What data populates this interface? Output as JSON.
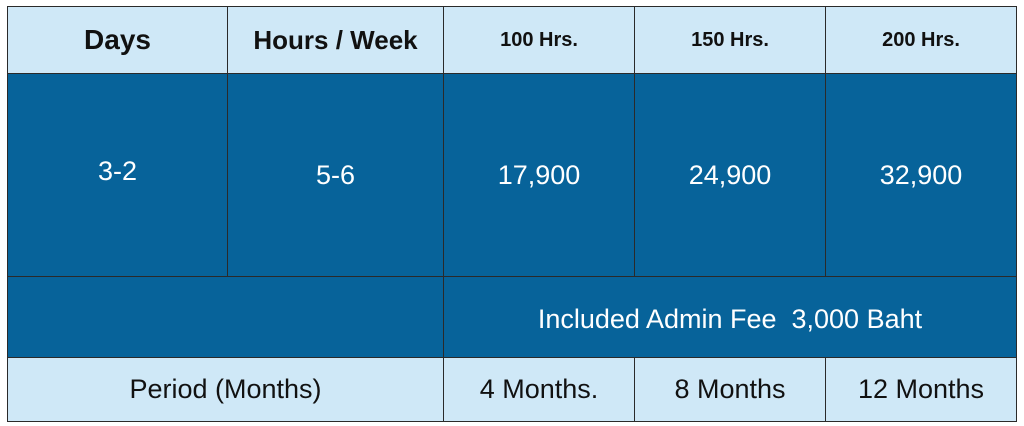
{
  "table": {
    "headers": {
      "days": "Days",
      "hours_week": "Hours / Week",
      "h100": "100 Hrs.",
      "h150": "150 Hrs.",
      "h200": "200 Hrs."
    },
    "row": {
      "days": "3-2",
      "hours_week": "5-6",
      "price_100": "17,900",
      "price_150": "24,900",
      "price_200": "32,900"
    },
    "admin_fee": "Included Admin Fee  3,000 Baht",
    "period": {
      "label": "Period (Months)",
      "m100": "4 Months.",
      "m150": "8 Months",
      "m200": "12 Months"
    }
  },
  "colors": {
    "header_bg": "#cfe8f7",
    "value_bg": "#07639a",
    "value_text": "#ffffff",
    "border": "#2a2a2a"
  }
}
